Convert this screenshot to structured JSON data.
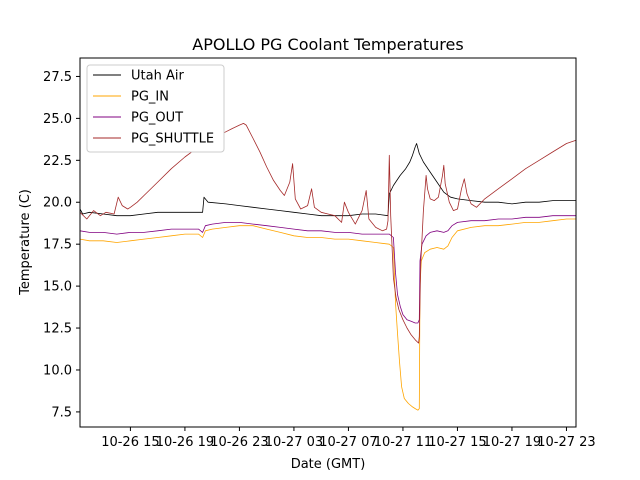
{
  "chart_data": {
    "type": "line",
    "title": "APOLLO PG Coolant Temperatures",
    "xlabel": "Date (GMT)",
    "ylabel": "Temperature (C)",
    "xlim": [
      11.3,
      47.7
    ],
    "ylim": [
      6.6,
      28.6
    ],
    "x_unit": "hours since 10-26 00:00 GMT",
    "grid": false,
    "legend_position": "top-left",
    "x_ticks": [
      {
        "value": 15,
        "label": "10-26 15"
      },
      {
        "value": 19,
        "label": "10-26 19"
      },
      {
        "value": 23,
        "label": "10-26 23"
      },
      {
        "value": 27,
        "label": "10-27 03"
      },
      {
        "value": 31,
        "label": "10-27 07"
      },
      {
        "value": 35,
        "label": "10-27 11"
      },
      {
        "value": 39,
        "label": "10-27 15"
      },
      {
        "value": 43,
        "label": "10-27 19"
      },
      {
        "value": 47,
        "label": "10-27 23"
      }
    ],
    "y_ticks": [
      {
        "value": 7.5,
        "label": "7.5"
      },
      {
        "value": 10.0,
        "label": "10.0"
      },
      {
        "value": 12.5,
        "label": "12.5"
      },
      {
        "value": 15.0,
        "label": "15.0"
      },
      {
        "value": 17.5,
        "label": "17.5"
      },
      {
        "value": 20.0,
        "label": "20.0"
      },
      {
        "value": 22.5,
        "label": "22.5"
      },
      {
        "value": 25.0,
        "label": "25.0"
      },
      {
        "value": 27.5,
        "label": "27.5"
      }
    ],
    "series": [
      {
        "name": "Utah Air",
        "color": "#000000",
        "points": [
          [
            11.3,
            19.6
          ],
          [
            11.5,
            19.3
          ],
          [
            12.0,
            19.4
          ],
          [
            13.0,
            19.3
          ],
          [
            14.0,
            19.2
          ],
          [
            15.0,
            19.2
          ],
          [
            16.0,
            19.3
          ],
          [
            17.0,
            19.4
          ],
          [
            18.0,
            19.4
          ],
          [
            19.0,
            19.4
          ],
          [
            20.0,
            19.4
          ],
          [
            20.3,
            19.4
          ],
          [
            20.4,
            20.3
          ],
          [
            20.7,
            20.0
          ],
          [
            22.0,
            19.9
          ],
          [
            23.0,
            19.8
          ],
          [
            24.0,
            19.7
          ],
          [
            25.0,
            19.6
          ],
          [
            26.0,
            19.5
          ],
          [
            27.0,
            19.4
          ],
          [
            28.0,
            19.3
          ],
          [
            29.0,
            19.2
          ],
          [
            30.0,
            19.2
          ],
          [
            31.0,
            19.2
          ],
          [
            32.0,
            19.3
          ],
          [
            33.0,
            19.3
          ],
          [
            33.9,
            19.2
          ],
          [
            34.0,
            20.5
          ],
          [
            34.3,
            21.0
          ],
          [
            34.8,
            21.6
          ],
          [
            35.2,
            22.0
          ],
          [
            35.5,
            22.4
          ],
          [
            35.7,
            22.8
          ],
          [
            35.9,
            23.3
          ],
          [
            36.0,
            23.5
          ],
          [
            36.2,
            22.9
          ],
          [
            36.5,
            22.4
          ],
          [
            37.0,
            21.8
          ],
          [
            37.5,
            21.2
          ],
          [
            38.0,
            20.6
          ],
          [
            38.5,
            20.3
          ],
          [
            39.0,
            20.2
          ],
          [
            40.0,
            20.1
          ],
          [
            41.0,
            20.0
          ],
          [
            42.0,
            20.0
          ],
          [
            43.0,
            19.9
          ],
          [
            44.0,
            20.0
          ],
          [
            45.0,
            20.0
          ],
          [
            46.0,
            20.1
          ],
          [
            47.0,
            20.1
          ],
          [
            47.7,
            20.1
          ]
        ]
      },
      {
        "name": "PG_IN",
        "color": "#ffa500",
        "points": [
          [
            11.3,
            17.8
          ],
          [
            12.0,
            17.7
          ],
          [
            13.0,
            17.7
          ],
          [
            14.0,
            17.6
          ],
          [
            15.0,
            17.7
          ],
          [
            16.0,
            17.8
          ],
          [
            17.0,
            17.9
          ],
          [
            18.0,
            18.0
          ],
          [
            19.0,
            18.1
          ],
          [
            20.0,
            18.1
          ],
          [
            20.3,
            17.9
          ],
          [
            20.5,
            18.3
          ],
          [
            21.0,
            18.4
          ],
          [
            22.0,
            18.5
          ],
          [
            23.0,
            18.6
          ],
          [
            24.0,
            18.6
          ],
          [
            25.0,
            18.4
          ],
          [
            26.0,
            18.2
          ],
          [
            27.0,
            18.0
          ],
          [
            28.0,
            17.9
          ],
          [
            29.0,
            17.9
          ],
          [
            30.0,
            17.8
          ],
          [
            31.0,
            17.8
          ],
          [
            32.0,
            17.7
          ],
          [
            33.0,
            17.6
          ],
          [
            34.0,
            17.5
          ],
          [
            34.3,
            17.3
          ],
          [
            34.45,
            14.0
          ],
          [
            34.6,
            12.2
          ],
          [
            34.75,
            10.5
          ],
          [
            34.9,
            9.0
          ],
          [
            35.1,
            8.3
          ],
          [
            35.4,
            8.0
          ],
          [
            35.7,
            7.8
          ],
          [
            35.9,
            7.7
          ],
          [
            36.1,
            7.6
          ],
          [
            36.2,
            7.7
          ],
          [
            36.25,
            15.0
          ],
          [
            36.35,
            16.5
          ],
          [
            36.6,
            17.0
          ],
          [
            37.0,
            17.2
          ],
          [
            37.5,
            17.3
          ],
          [
            38.0,
            17.2
          ],
          [
            38.3,
            17.4
          ],
          [
            38.6,
            17.9
          ],
          [
            39.0,
            18.3
          ],
          [
            40.0,
            18.5
          ],
          [
            41.0,
            18.6
          ],
          [
            42.0,
            18.6
          ],
          [
            43.0,
            18.7
          ],
          [
            44.0,
            18.8
          ],
          [
            45.0,
            18.8
          ],
          [
            46.0,
            18.9
          ],
          [
            47.0,
            19.0
          ],
          [
            47.7,
            19.0
          ]
        ]
      },
      {
        "name": "PG_OUT",
        "color": "#800080",
        "points": [
          [
            11.3,
            18.3
          ],
          [
            12.0,
            18.2
          ],
          [
            13.0,
            18.2
          ],
          [
            14.0,
            18.1
          ],
          [
            15.0,
            18.2
          ],
          [
            16.0,
            18.2
          ],
          [
            17.0,
            18.3
          ],
          [
            18.0,
            18.4
          ],
          [
            19.0,
            18.4
          ],
          [
            20.0,
            18.4
          ],
          [
            20.3,
            18.2
          ],
          [
            20.5,
            18.6
          ],
          [
            21.0,
            18.7
          ],
          [
            22.0,
            18.8
          ],
          [
            23.0,
            18.8
          ],
          [
            24.0,
            18.7
          ],
          [
            25.0,
            18.6
          ],
          [
            26.0,
            18.5
          ],
          [
            27.0,
            18.4
          ],
          [
            28.0,
            18.3
          ],
          [
            29.0,
            18.3
          ],
          [
            30.0,
            18.2
          ],
          [
            31.0,
            18.2
          ],
          [
            32.0,
            18.1
          ],
          [
            33.0,
            18.1
          ],
          [
            34.0,
            18.1
          ],
          [
            34.3,
            17.9
          ],
          [
            34.45,
            15.8
          ],
          [
            34.6,
            14.5
          ],
          [
            34.8,
            13.8
          ],
          [
            35.0,
            13.3
          ],
          [
            35.3,
            13.0
          ],
          [
            35.6,
            12.9
          ],
          [
            35.9,
            12.8
          ],
          [
            36.1,
            12.8
          ],
          [
            36.2,
            13.0
          ],
          [
            36.25,
            16.5
          ],
          [
            36.4,
            17.5
          ],
          [
            36.7,
            18.0
          ],
          [
            37.0,
            18.2
          ],
          [
            37.5,
            18.3
          ],
          [
            38.0,
            18.2
          ],
          [
            38.3,
            18.3
          ],
          [
            38.6,
            18.6
          ],
          [
            39.0,
            18.8
          ],
          [
            40.0,
            18.9
          ],
          [
            41.0,
            18.9
          ],
          [
            42.0,
            19.0
          ],
          [
            43.0,
            19.0
          ],
          [
            44.0,
            19.1
          ],
          [
            45.0,
            19.1
          ],
          [
            46.0,
            19.2
          ],
          [
            47.0,
            19.2
          ],
          [
            47.7,
            19.2
          ]
        ]
      },
      {
        "name": "PG_SHUTTLE",
        "color": "#a52a2a",
        "points": [
          [
            11.3,
            19.4
          ],
          [
            11.8,
            19.0
          ],
          [
            12.3,
            19.5
          ],
          [
            12.8,
            19.2
          ],
          [
            13.2,
            19.4
          ],
          [
            13.8,
            19.3
          ],
          [
            14.1,
            20.3
          ],
          [
            14.4,
            19.8
          ],
          [
            14.8,
            19.6
          ],
          [
            15.0,
            19.7
          ],
          [
            15.5,
            20.0
          ],
          [
            16.0,
            20.4
          ],
          [
            17.0,
            21.2
          ],
          [
            18.0,
            22.0
          ],
          [
            19.0,
            22.7
          ],
          [
            20.0,
            23.3
          ],
          [
            21.0,
            23.8
          ],
          [
            22.0,
            24.2
          ],
          [
            22.5,
            24.4
          ],
          [
            23.0,
            24.6
          ],
          [
            23.3,
            24.7
          ],
          [
            23.5,
            24.6
          ],
          [
            24.0,
            23.8
          ],
          [
            24.5,
            23.0
          ],
          [
            25.0,
            22.1
          ],
          [
            25.5,
            21.3
          ],
          [
            26.0,
            20.7
          ],
          [
            26.3,
            20.4
          ],
          [
            26.7,
            21.2
          ],
          [
            26.9,
            22.3
          ],
          [
            27.1,
            20.2
          ],
          [
            27.5,
            19.6
          ],
          [
            28.0,
            19.8
          ],
          [
            28.3,
            20.8
          ],
          [
            28.5,
            19.7
          ],
          [
            29.0,
            19.4
          ],
          [
            29.5,
            19.3
          ],
          [
            30.0,
            19.2
          ],
          [
            30.5,
            18.8
          ],
          [
            30.7,
            20.0
          ],
          [
            31.0,
            19.4
          ],
          [
            31.5,
            18.7
          ],
          [
            32.0,
            19.5
          ],
          [
            32.3,
            20.7
          ],
          [
            32.5,
            19.0
          ],
          [
            33.0,
            18.5
          ],
          [
            33.5,
            18.3
          ],
          [
            33.8,
            18.4
          ],
          [
            33.9,
            18.9
          ],
          [
            34.0,
            22.8
          ],
          [
            34.1,
            19.2
          ],
          [
            34.3,
            15.5
          ],
          [
            34.5,
            14.3
          ],
          [
            34.7,
            13.6
          ],
          [
            35.0,
            13.0
          ],
          [
            35.3,
            12.5
          ],
          [
            35.6,
            12.1
          ],
          [
            35.9,
            11.8
          ],
          [
            36.15,
            11.6
          ],
          [
            36.2,
            12.0
          ],
          [
            36.3,
            16.3
          ],
          [
            36.5,
            19.5
          ],
          [
            36.7,
            21.6
          ],
          [
            36.8,
            20.8
          ],
          [
            37.0,
            20.2
          ],
          [
            37.3,
            20.1
          ],
          [
            37.6,
            20.3
          ],
          [
            37.9,
            21.6
          ],
          [
            38.0,
            22.2
          ],
          [
            38.1,
            21.1
          ],
          [
            38.4,
            20.0
          ],
          [
            38.7,
            19.5
          ],
          [
            39.0,
            19.6
          ],
          [
            39.3,
            20.8
          ],
          [
            39.5,
            21.4
          ],
          [
            39.7,
            20.5
          ],
          [
            40.0,
            19.9
          ],
          [
            40.4,
            19.7
          ],
          [
            41.0,
            20.2
          ],
          [
            42.0,
            20.8
          ],
          [
            43.0,
            21.4
          ],
          [
            44.0,
            22.0
          ],
          [
            45.0,
            22.5
          ],
          [
            46.0,
            23.0
          ],
          [
            47.0,
            23.5
          ],
          [
            47.7,
            23.7
          ]
        ]
      }
    ]
  }
}
